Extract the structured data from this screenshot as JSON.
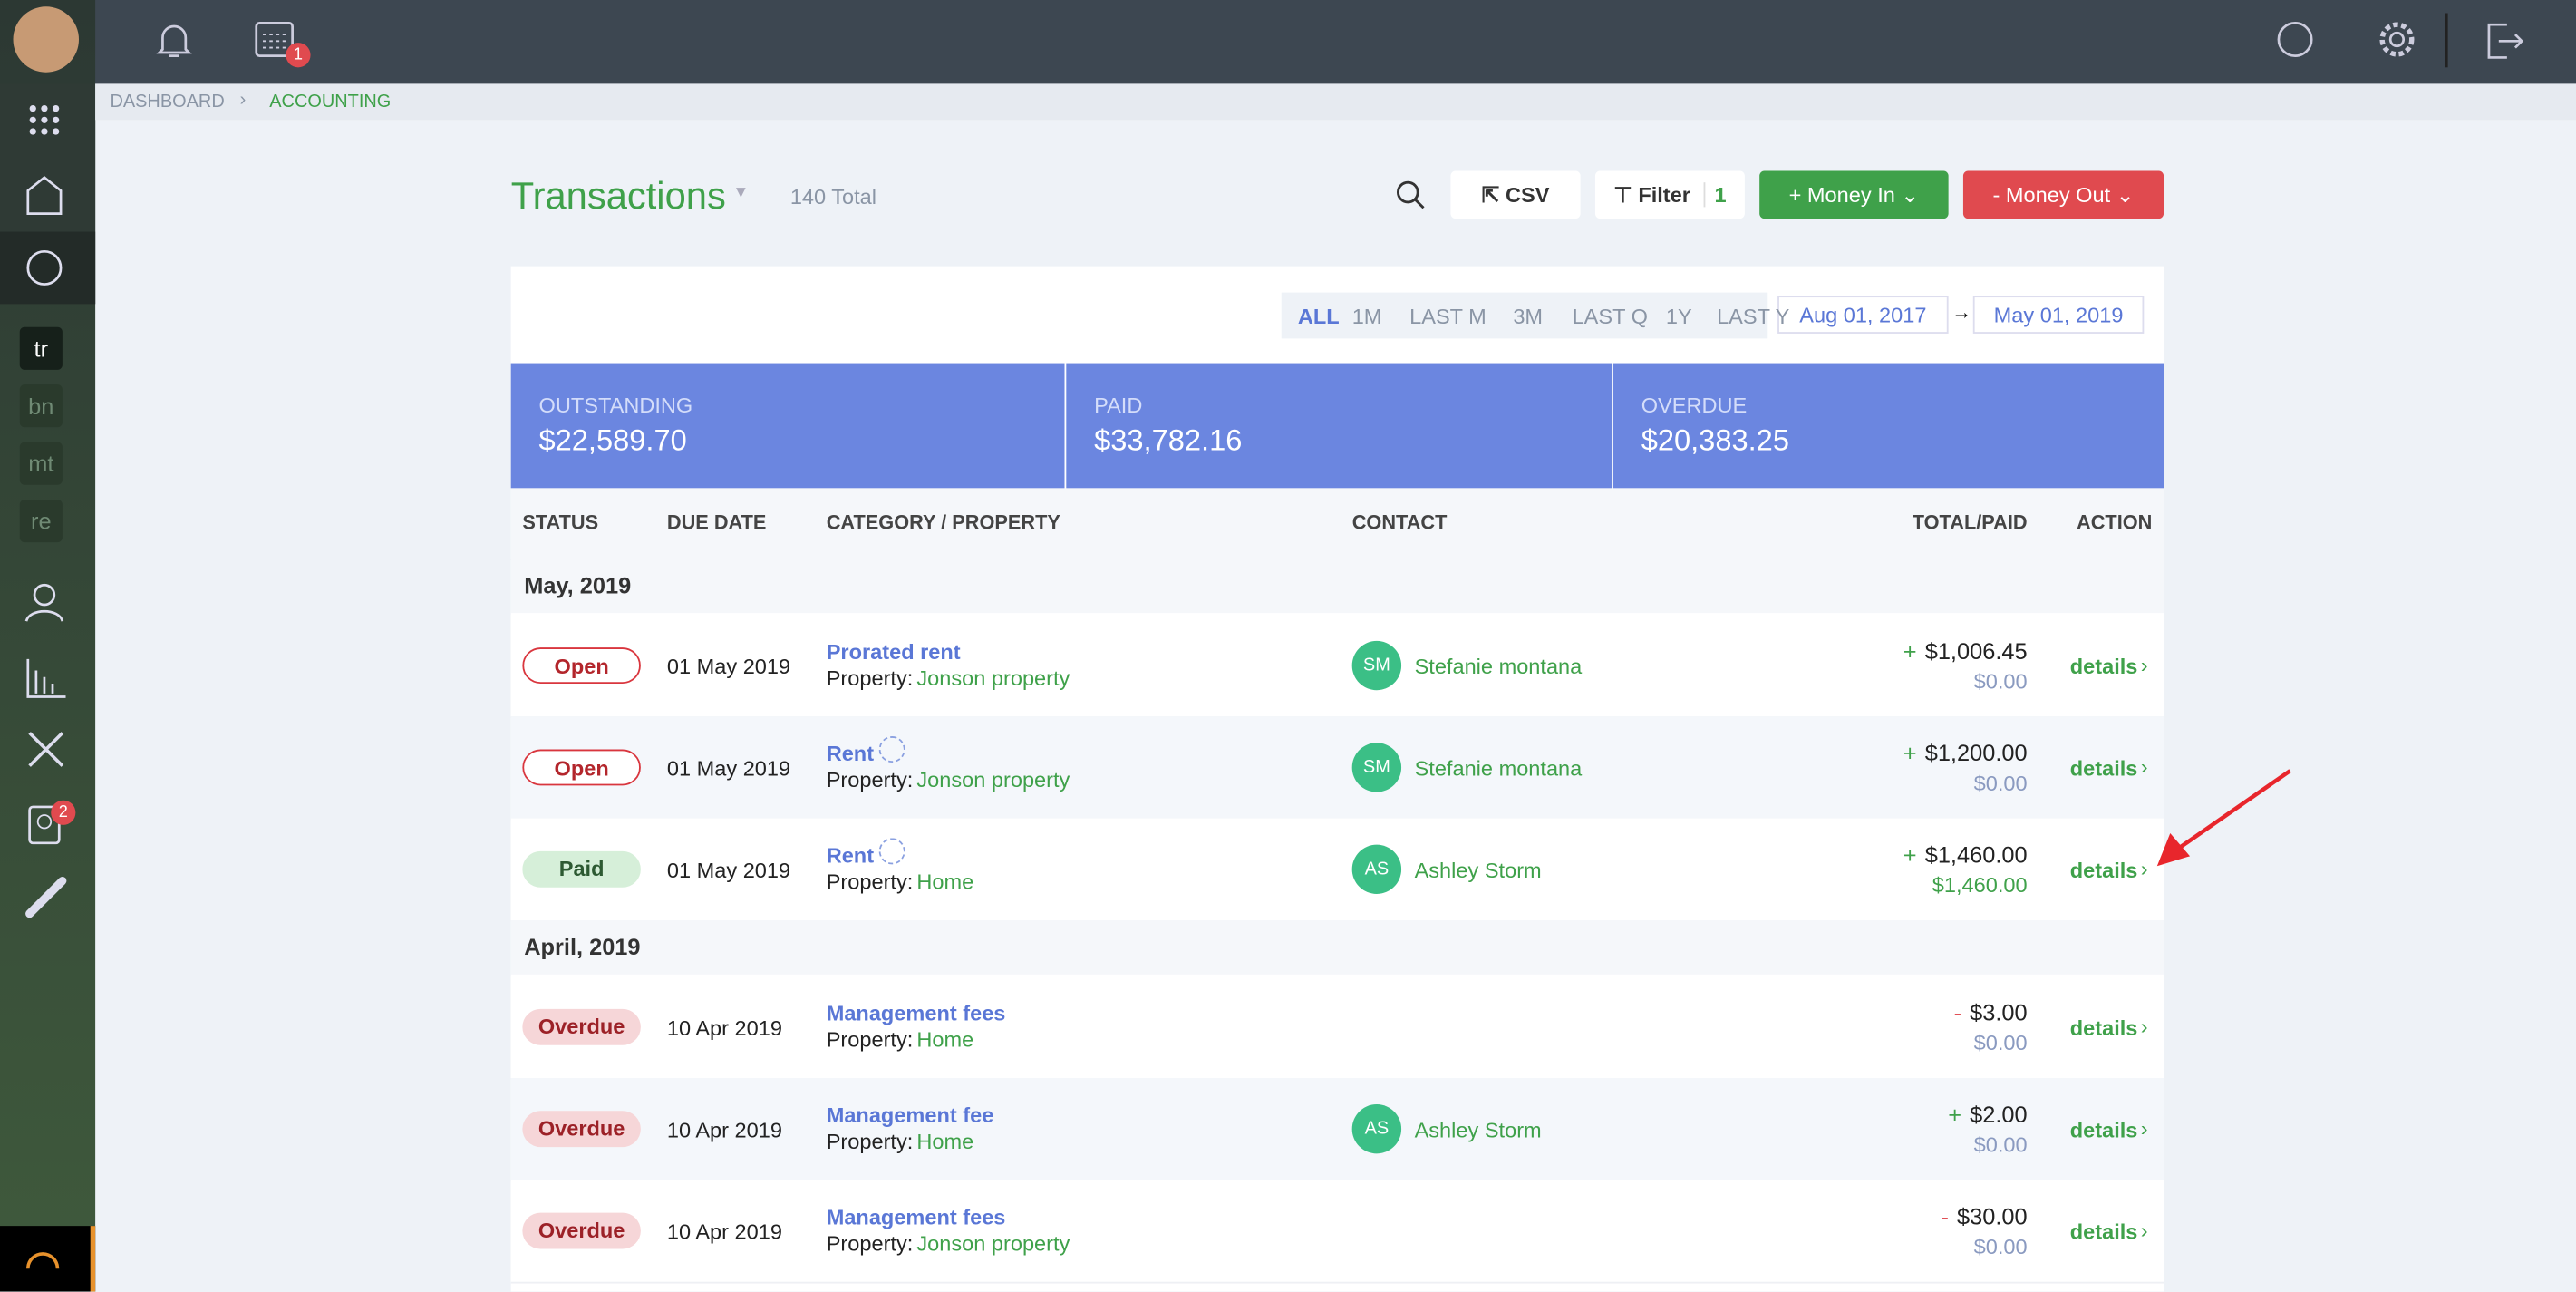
{
  "topbar": {
    "calendar_badge": "1"
  },
  "sidebar": {
    "workspaces": [
      "tr",
      "bn",
      "mt",
      "re"
    ],
    "contacts_badge": "2"
  },
  "breadcrumb": [
    "DASHBOARD",
    "ACCOUNTING"
  ],
  "header": {
    "title": "Transactions",
    "total": "140 Total",
    "buttons": {
      "csv": "CSV",
      "filter": "Filter",
      "filter_count": "1",
      "money_in": "+ Money In",
      "money_out": "- Money Out"
    }
  },
  "periods": [
    "ALL",
    "1M",
    "LAST M",
    "3M",
    "LAST Q",
    "1Y",
    "LAST Y"
  ],
  "date_from": "Aug 01, 2017",
  "date_to": "May 01, 2019",
  "summary": [
    {
      "label": "OUTSTANDING",
      "value": "$22,589.70"
    },
    {
      "label": "PAID",
      "value": "$33,782.16"
    },
    {
      "label": "OVERDUE",
      "value": "$20,383.25"
    }
  ],
  "table": {
    "columns": [
      "STATUS",
      "DUE DATE",
      "CATEGORY / PROPERTY",
      "CONTACT",
      "TOTAL/PAID",
      "ACTION"
    ],
    "groups": [
      {
        "title": "May, 2019",
        "rows": [
          {
            "status": "Open",
            "due": "01 May 2019",
            "category": "Prorated rent",
            "recurring": false,
            "property_label": "Property:",
            "property": "Jonson property",
            "initials": "SM",
            "contact": "Stefanie montana",
            "sign": "+",
            "total": "$1,006.45",
            "paid": "$0.00",
            "action": "details"
          },
          {
            "status": "Open",
            "due": "01 May 2019",
            "category": "Rent",
            "recurring": true,
            "property_label": "Property:",
            "property": "Jonson property",
            "initials": "SM",
            "contact": "Stefanie montana",
            "sign": "+",
            "total": "$1,200.00",
            "paid": "$0.00",
            "action": "details"
          },
          {
            "status": "Paid",
            "due": "01 May 2019",
            "category": "Rent",
            "recurring": true,
            "property_label": "Property:",
            "property": "Home",
            "initials": "AS",
            "contact": "Ashley Storm",
            "sign": "+",
            "total": "$1,460.00",
            "paid": "$1,460.00",
            "action": "details"
          }
        ]
      },
      {
        "title": "April, 2019",
        "rows": [
          {
            "status": "Overdue",
            "due": "10 Apr 2019",
            "category": "Management fees",
            "recurring": false,
            "property_label": "Property:",
            "property": "Home",
            "sign": "-",
            "total": "$3.00",
            "paid": "$0.00",
            "action": "details"
          },
          {
            "status": "Overdue",
            "due": "10 Apr 2019",
            "category": "Management fee",
            "recurring": false,
            "property_label": "Property:",
            "property": "Home",
            "initials": "AS",
            "contact": "Ashley Storm",
            "sign": "+",
            "total": "$2.00",
            "paid": "$0.00",
            "action": "details"
          },
          {
            "status": "Overdue",
            "due": "10 Apr 2019",
            "category": "Management fees",
            "recurring": false,
            "property_label": "Property:",
            "property": "Jonson property",
            "sign": "-",
            "total": "$30.00",
            "paid": "$0.00",
            "action": "details"
          }
        ]
      }
    ]
  }
}
